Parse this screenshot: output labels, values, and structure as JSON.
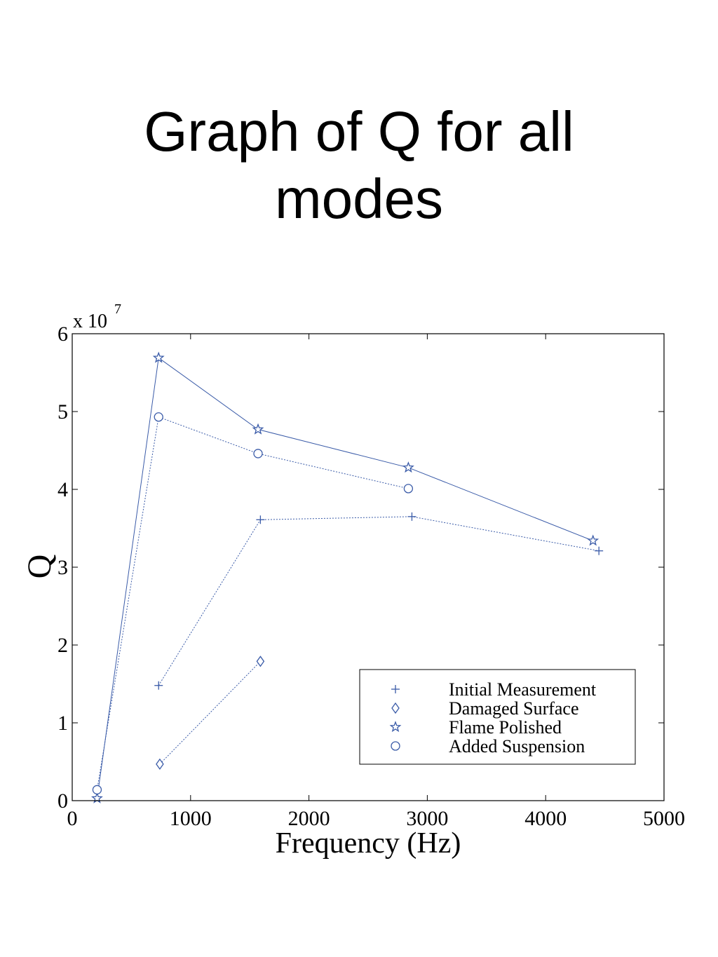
{
  "page": {
    "title_line1": "Graph of Q for all",
    "title_line2": "modes"
  },
  "colors": {
    "series": "#3a5ba8",
    "axes": "#000000",
    "background": "#ffffff"
  },
  "chart_data": {
    "type": "line",
    "title": "",
    "xlabel": "Frequency (Hz)",
    "ylabel": "Q",
    "y_multiplier_label": "x 10",
    "y_multiplier_exponent": "7",
    "xlim": [
      0,
      5000
    ],
    "ylim": [
      0,
      6
    ],
    "xticks": [
      0,
      1000,
      2000,
      3000,
      4000,
      5000
    ],
    "yticks": [
      0,
      1,
      2,
      3,
      4,
      5,
      6
    ],
    "grid": false,
    "legend_position": "bottom-right",
    "series": [
      {
        "name": "Initial Measurement",
        "marker": "plus",
        "line": "dotted",
        "x": [
          730,
          1590,
          2870,
          4450
        ],
        "y": [
          1.48,
          3.61,
          3.65,
          3.21
        ]
      },
      {
        "name": "Damaged Surface",
        "marker": "diamond",
        "line": "dotted",
        "x": [
          740,
          1590
        ],
        "y": [
          0.47,
          1.79
        ]
      },
      {
        "name": "Flame Polished",
        "marker": "star",
        "line": "solid",
        "x": [
          210,
          730,
          1570,
          2840,
          4400
        ],
        "y": [
          0.03,
          5.69,
          4.77,
          4.28,
          3.34
        ]
      },
      {
        "name": "Added Suspension",
        "marker": "circle",
        "line": "dotted",
        "x": [
          210,
          730,
          1570,
          2840
        ],
        "y": [
          0.14,
          4.93,
          4.46,
          4.01
        ]
      }
    ]
  }
}
